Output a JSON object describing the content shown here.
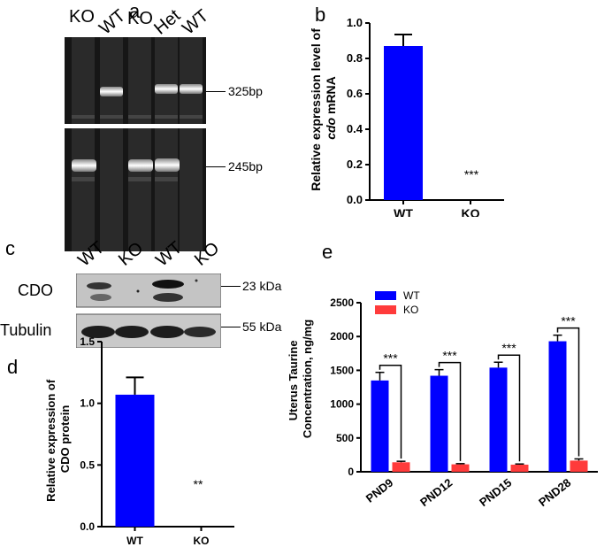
{
  "panels": {
    "a": {
      "letter": "a",
      "lanes": [
        "KO",
        "WT",
        "KO",
        "Het",
        "WT"
      ],
      "bands": [
        "325bp",
        "245bp"
      ]
    },
    "b": {
      "letter": "b",
      "ylabel_line1": "Relative expression level of",
      "ylabel_line2_italic": "cdo",
      "ylabel_line2_rest": " mRNA",
      "significance": "***"
    },
    "c": {
      "letter": "c",
      "lanes": [
        "WT",
        "KO",
        "WT",
        "KO"
      ],
      "rows": [
        "CDO",
        "Tubulin"
      ],
      "sizes": [
        "23 kDa",
        "55 kDa"
      ]
    },
    "d": {
      "letter": "d",
      "ylabel_line1": "Relative expression of",
      "ylabel_line2": "CDO protein",
      "significance": "**"
    },
    "e": {
      "letter": "e",
      "ylabel_line1": "Uterus Taurine",
      "ylabel_line2": "Concentration, ng/mg",
      "significance": "***"
    }
  },
  "chart_data": [
    {
      "id": "b",
      "type": "bar",
      "categories": [
        "WT",
        "KO"
      ],
      "values": [
        0.87,
        0.0
      ],
      "errors": [
        0.065,
        0.0
      ],
      "ylim": [
        0,
        1.0
      ],
      "yticks": [
        0.0,
        0.2,
        0.4,
        0.6,
        0.8,
        1.0
      ],
      "ytick_labels": [
        "0.0",
        "0.2",
        "0.4",
        "0.6",
        "0.8",
        "1.0"
      ],
      "color": "#0000ff"
    },
    {
      "id": "d",
      "type": "bar",
      "categories": [
        "WT",
        "KO"
      ],
      "values": [
        1.07,
        0.0
      ],
      "errors": [
        0.14,
        0.0
      ],
      "ylim": [
        0,
        1.5
      ],
      "yticks": [
        0.0,
        0.5,
        1.0,
        1.5
      ],
      "ytick_labels": [
        "0.0",
        "0.5",
        "1.0",
        "1.5"
      ],
      "color": "#0000ff"
    },
    {
      "id": "e",
      "type": "bar",
      "categories": [
        "PND9",
        "PND12",
        "PND15",
        "PND28"
      ],
      "series": [
        {
          "name": "WT",
          "values": [
            1350,
            1420,
            1540,
            1930
          ],
          "errors": [
            120,
            90,
            80,
            90
          ],
          "color": "#0000ff"
        },
        {
          "name": "KO",
          "values": [
            140,
            110,
            105,
            165
          ],
          "errors": [
            15,
            10,
            10,
            25
          ],
          "color": "#ff3b3b"
        }
      ],
      "ylim": [
        0,
        2500
      ],
      "yticks": [
        0,
        500,
        1000,
        1500,
        2000,
        2500
      ],
      "ytick_labels": [
        "0",
        "500",
        "1000",
        "1500",
        "2000",
        "2500"
      ],
      "legend": "top-left"
    }
  ]
}
